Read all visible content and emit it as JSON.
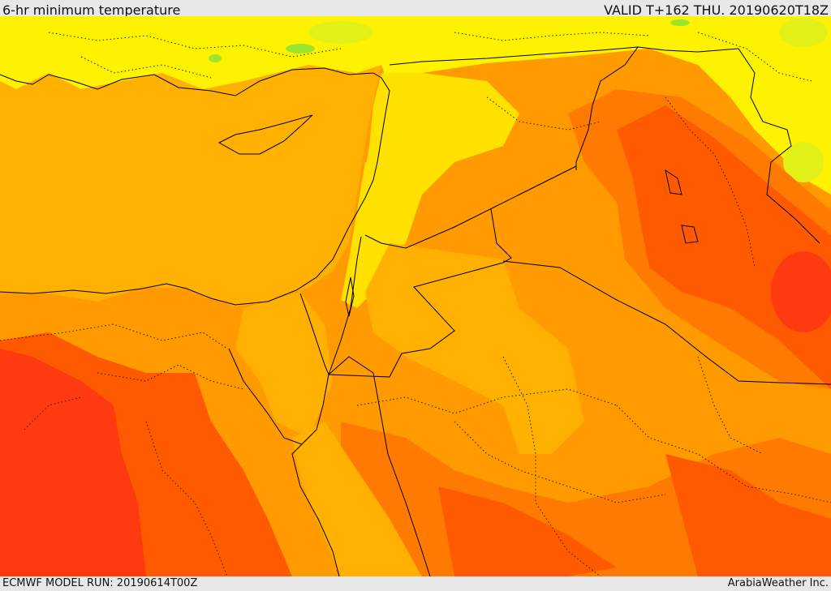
{
  "header": {
    "title": "6-hr minimum temperature",
    "valid": "VALID T+162 THU. 20190620T18Z"
  },
  "footer": {
    "model_run": "ECMWF MODEL RUN: 20190614T00Z",
    "credit": "ArabiaWeather Inc."
  },
  "palette": {
    "green": "#9be52c",
    "yellow_green": "#e2f018",
    "yellow": "#fff200",
    "gold": "#ffe100",
    "light_orange": "#ffb000",
    "orange": "#ff9a00",
    "dark_orange": "#ff7a00",
    "red_orange": "#ff5a00",
    "red": "#ff3a10"
  }
}
